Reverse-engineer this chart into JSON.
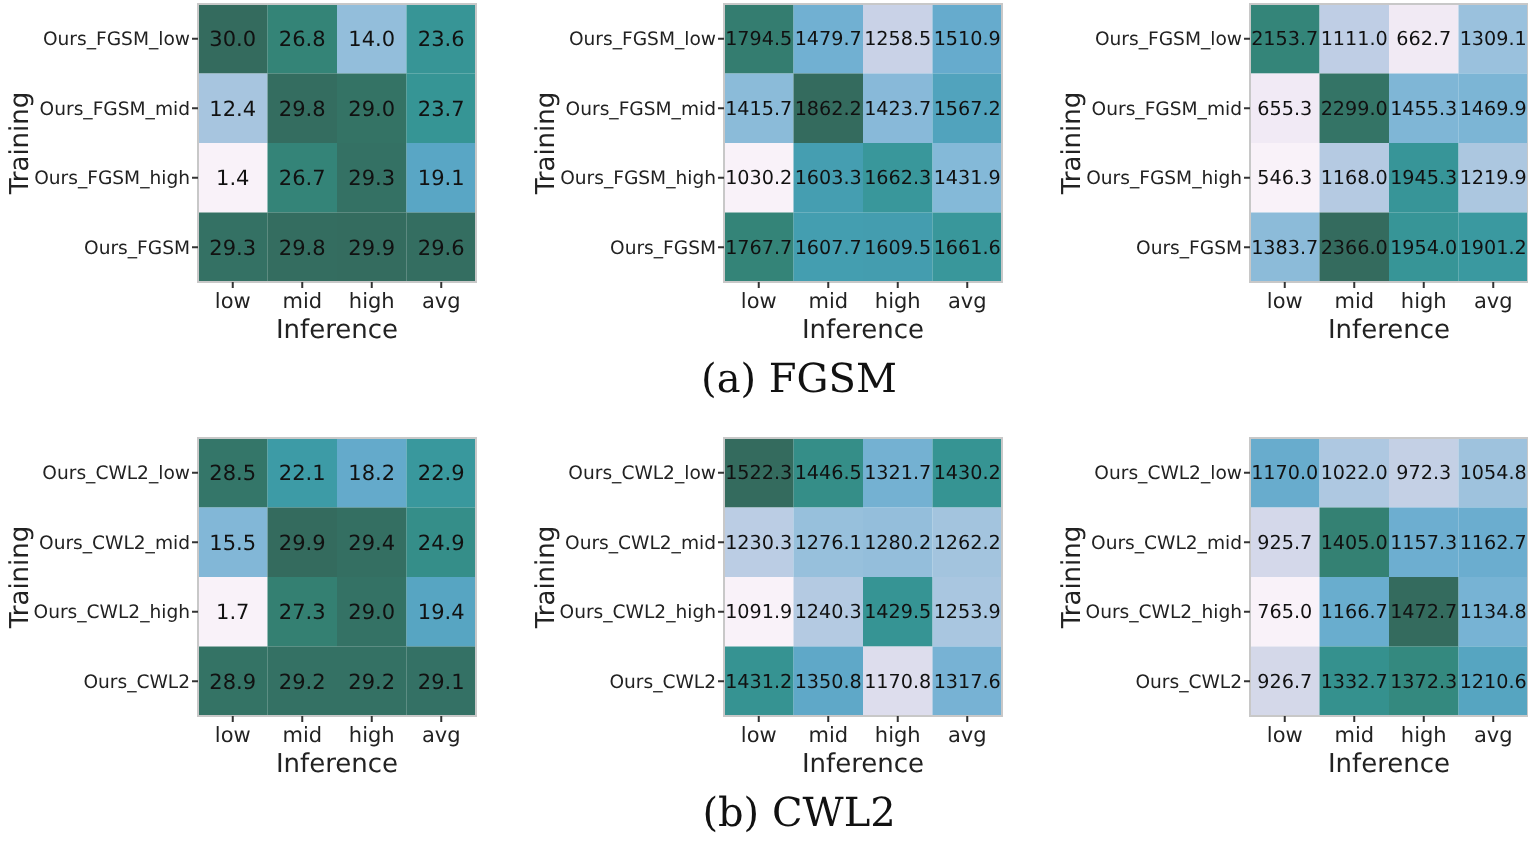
{
  "chart_data": [
    {
      "type": "heatmap",
      "xlabel": "Inference",
      "ylabel": "Training",
      "categories": [
        "low",
        "mid",
        "high",
        "avg"
      ],
      "y_categories": [
        "Ours_FGSM_low",
        "Ours_FGSM_mid",
        "Ours_FGSM_high",
        "Ours_FGSM"
      ],
      "cells": [
        [
          30.0,
          26.8,
          14.0,
          23.6
        ],
        [
          12.4,
          29.8,
          29.0,
          23.7
        ],
        [
          1.4,
          26.7,
          29.3,
          19.1
        ],
        [
          29.3,
          29.8,
          29.9,
          29.6
        ]
      ],
      "cell_labels": [
        [
          "30.0",
          "26.8",
          "14.0",
          "23.6"
        ],
        [
          "12.4",
          "29.8",
          "29.0",
          "23.7"
        ],
        [
          "1.4",
          "26.7",
          "29.3",
          "19.1"
        ],
        [
          "29.3",
          "29.8",
          "29.9",
          "29.6"
        ]
      ]
    },
    {
      "type": "heatmap",
      "xlabel": "Inference",
      "ylabel": "Training",
      "annotations": [
        "(a) FGSM"
      ],
      "categories": [
        "low",
        "mid",
        "high",
        "avg"
      ],
      "y_categories": [
        "Ours_FGSM_low",
        "Ours_FGSM_mid",
        "Ours_FGSM_high",
        "Ours_FGSM"
      ],
      "cells": [
        [
          1794.5,
          1479.7,
          1258.5,
          1510.9
        ],
        [
          1415.7,
          1862.2,
          1423.7,
          1567.2
        ],
        [
          1030.2,
          1603.3,
          1662.3,
          1431.9
        ],
        [
          1767.7,
          1607.7,
          1609.5,
          1661.6
        ]
      ],
      "cell_labels": [
        [
          "1794.5",
          "1479.7",
          "1258.5",
          "1510.9"
        ],
        [
          "1415.7",
          "1862.2",
          "1423.7",
          "1567.2"
        ],
        [
          "1030.2",
          "1603.3",
          "1662.3",
          "1431.9"
        ],
        [
          "1767.7",
          "1607.7",
          "1609.5",
          "1661.6"
        ]
      ]
    },
    {
      "type": "heatmap",
      "xlabel": "Inference",
      "ylabel": "Training",
      "categories": [
        "low",
        "mid",
        "high",
        "avg"
      ],
      "y_categories": [
        "Ours_FGSM_low",
        "Ours_FGSM_mid",
        "Ours_FGSM_high",
        "Ours_FGSM"
      ],
      "cells": [
        [
          2153.7,
          1111.0,
          662.7,
          1309.1
        ],
        [
          655.3,
          2299.0,
          1455.3,
          1469.9
        ],
        [
          546.3,
          1168.0,
          1945.3,
          1219.9
        ],
        [
          1383.7,
          2366.0,
          1954.0,
          1901.2
        ]
      ],
      "cell_labels": [
        [
          "2153.7",
          "1111.0",
          "662.7",
          "1309.1"
        ],
        [
          "655.3",
          "2299.0",
          "1455.3",
          "1469.9"
        ],
        [
          "546.3",
          "1168.0",
          "1945.3",
          "1219.9"
        ],
        [
          "1383.7",
          "2366.0",
          "1954.0",
          "1901.2"
        ]
      ]
    },
    {
      "type": "heatmap",
      "xlabel": "Inference",
      "ylabel": "Training",
      "categories": [
        "low",
        "mid",
        "high",
        "avg"
      ],
      "y_categories": [
        "Ours_CWL2_low",
        "Ours_CWL2_mid",
        "Ours_CWL2_high",
        "Ours_CWL2"
      ],
      "cells": [
        [
          28.5,
          22.1,
          18.2,
          22.9
        ],
        [
          15.5,
          29.9,
          29.4,
          24.9
        ],
        [
          1.7,
          27.3,
          29.0,
          19.4
        ],
        [
          28.9,
          29.2,
          29.2,
          29.1
        ]
      ],
      "cell_labels": [
        [
          "28.5",
          "22.1",
          "18.2",
          "22.9"
        ],
        [
          "15.5",
          "29.9",
          "29.4",
          "24.9"
        ],
        [
          "1.7",
          "27.3",
          "29.0",
          "19.4"
        ],
        [
          "28.9",
          "29.2",
          "29.2",
          "29.1"
        ]
      ]
    },
    {
      "type": "heatmap",
      "xlabel": "Inference",
      "ylabel": "Training",
      "annotations": [
        "(b) CWL2"
      ],
      "categories": [
        "low",
        "mid",
        "high",
        "avg"
      ],
      "y_categories": [
        "Ours_CWL2_low",
        "Ours_CWL2_mid",
        "Ours_CWL2_high",
        "Ours_CWL2"
      ],
      "cells": [
        [
          1522.3,
          1446.5,
          1321.7,
          1430.2
        ],
        [
          1230.3,
          1276.1,
          1280.2,
          1262.2
        ],
        [
          1091.9,
          1240.3,
          1429.5,
          1253.9
        ],
        [
          1431.2,
          1350.8,
          1170.8,
          1317.6
        ]
      ],
      "cell_labels": [
        [
          "1522.3",
          "1446.5",
          "1321.7",
          "1430.2"
        ],
        [
          "1230.3",
          "1276.1",
          "1280.2",
          "1262.2"
        ],
        [
          "1091.9",
          "1240.3",
          "1429.5",
          "1253.9"
        ],
        [
          "1431.2",
          "1350.8",
          "1170.8",
          "1317.6"
        ]
      ]
    },
    {
      "type": "heatmap",
      "xlabel": "Inference",
      "ylabel": "Training",
      "categories": [
        "low",
        "mid",
        "high",
        "avg"
      ],
      "y_categories": [
        "Ours_CWL2_low",
        "Ours_CWL2_mid",
        "Ours_CWL2_high",
        "Ours_CWL2"
      ],
      "cells": [
        [
          1170.0,
          1022.0,
          972.3,
          1054.8
        ],
        [
          925.7,
          1405.0,
          1157.3,
          1162.7
        ],
        [
          765.0,
          1166.7,
          1472.7,
          1134.8
        ],
        [
          926.7,
          1332.7,
          1372.3,
          1210.6
        ]
      ],
      "cell_labels": [
        [
          "1170.0",
          "1022.0",
          "972.3",
          "1054.8"
        ],
        [
          "925.7",
          "1405.0",
          "1157.3",
          "1162.7"
        ],
        [
          "765.0",
          "1166.7",
          "1472.7",
          "1134.8"
        ],
        [
          "926.7",
          "1332.7",
          "1372.3",
          "1210.6"
        ]
      ]
    }
  ]
}
